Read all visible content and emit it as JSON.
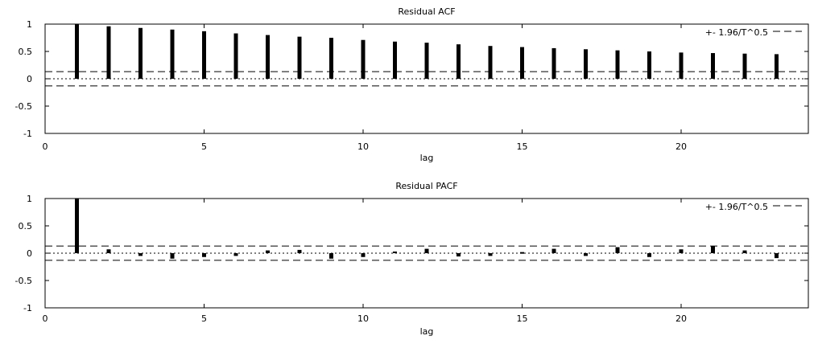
{
  "chart_data": [
    {
      "type": "bar",
      "title": "Residual ACF",
      "xlabel": "lag",
      "ylabel": "",
      "xlim": [
        0,
        24
      ],
      "ylim": [
        -1,
        1
      ],
      "x_ticks": [
        "0",
        "5",
        "10",
        "15",
        "20"
      ],
      "y_ticks": [
        "1",
        "0.5",
        "0",
        "-0.5",
        "-1"
      ],
      "legend": "+- 1.96/T^0.5",
      "legend_position": "top-right",
      "confidence_band": 0.13,
      "lags": [
        1,
        2,
        3,
        4,
        5,
        6,
        7,
        8,
        9,
        10,
        11,
        12,
        13,
        14,
        15,
        16,
        17,
        18,
        19,
        20,
        21,
        22,
        23
      ],
      "values": [
        1.0,
        0.96,
        0.93,
        0.9,
        0.87,
        0.83,
        0.8,
        0.77,
        0.75,
        0.71,
        0.68,
        0.66,
        0.63,
        0.6,
        0.58,
        0.56,
        0.54,
        0.52,
        0.5,
        0.48,
        0.47,
        0.46,
        0.45
      ]
    },
    {
      "type": "bar",
      "title": "Residual PACF",
      "xlabel": "lag",
      "ylabel": "",
      "xlim": [
        0,
        24
      ],
      "ylim": [
        -1,
        1
      ],
      "x_ticks": [
        "0",
        "5",
        "10",
        "15",
        "20"
      ],
      "y_ticks": [
        "1",
        "0.5",
        "0",
        "-0.5",
        "-1"
      ],
      "legend": "+- 1.96/T^0.5",
      "legend_position": "top-right",
      "confidence_band": 0.13,
      "lags": [
        1,
        2,
        3,
        4,
        5,
        6,
        7,
        8,
        9,
        10,
        11,
        12,
        13,
        14,
        15,
        16,
        17,
        18,
        19,
        20,
        21,
        22,
        23
      ],
      "values": [
        1.0,
        0.07,
        -0.05,
        -0.1,
        -0.07,
        -0.05,
        0.05,
        0.06,
        -0.1,
        -0.07,
        0.03,
        0.08,
        -0.06,
        -0.05,
        0.02,
        0.08,
        -0.05,
        0.11,
        -0.07,
        0.07,
        0.13,
        0.05,
        -0.09
      ]
    }
  ]
}
